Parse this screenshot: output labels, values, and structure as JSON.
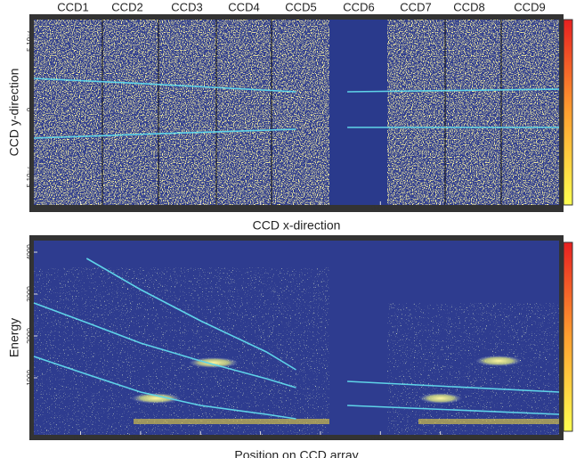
{
  "chart_data": [
    {
      "type": "heatmap",
      "ccd_labels": [
        "CCD1",
        "CCD2",
        "CCD3",
        "CCD4",
        "CCD5",
        "CCD6",
        "CCD7",
        "CCD8",
        "CCD9"
      ],
      "x_label": "CCD x-direction",
      "y_label": "CCD y-direction",
      "xlim": [
        0.0361,
        0.0799
      ],
      "xticks": [
        0.04,
        0.045,
        0.05,
        0.055,
        0.06,
        0.065,
        0.07
      ],
      "ylim": [
        -0.000695,
        0.000656
      ],
      "yticks": [
        {
          "value": 0.0005,
          "label": "5·10⁻⁴"
        },
        0,
        {
          "value": -0.0005,
          "label": "-5·10⁻⁴"
        }
      ],
      "x": [
        0.0361,
        0.045,
        0.05796,
        null,
        0.06224,
        0.0799
      ],
      "series": [
        {
          "color": "#5fd3e8",
          "values": [
            0.000227,
            0.00019,
            0.00013,
            null,
            0.00013,
            0.000149
          ]
        },
        {
          "color": "#5fd3e8",
          "values": [
            -0.000208,
            -0.00018,
            -0.000143,
            null,
            -0.00013,
            -0.00013
          ]
        }
      ]
    },
    {
      "type": "heatmap",
      "x_label": "Position on CCD array",
      "y_label": "Energy",
      "xlim": [
        0.0361,
        0.0799
      ],
      "xticks": [
        0.04,
        0.045,
        0.05,
        0.055,
        0.06,
        0.065,
        0.07
      ],
      "ylim": [
        -362,
        4277
      ],
      "yticks": [
        1000,
        2000,
        3000,
        4000
      ],
      "x": [
        0.0361,
        0.0405,
        0.045,
        0.05,
        0.0555,
        0.05796,
        null,
        0.06224,
        0.0799
      ],
      "series": [
        {
          "color": "#5fd3e8",
          "values": [
            null,
            3851,
            3106,
            2362,
            1617,
            1191,
            null,
            915,
            660
          ]
        },
        {
          "color": "#5fd3e8",
          "values": [
            2787,
            2319,
            1830,
            1404,
            979,
            766,
            null,
            340,
            128
          ]
        },
        {
          "color": "#5fd3e8",
          "values": [
            1511,
            1085,
            660,
            340,
            128,
            21,
            null,
            null,
            null
          ]
        }
      ]
    }
  ]
}
